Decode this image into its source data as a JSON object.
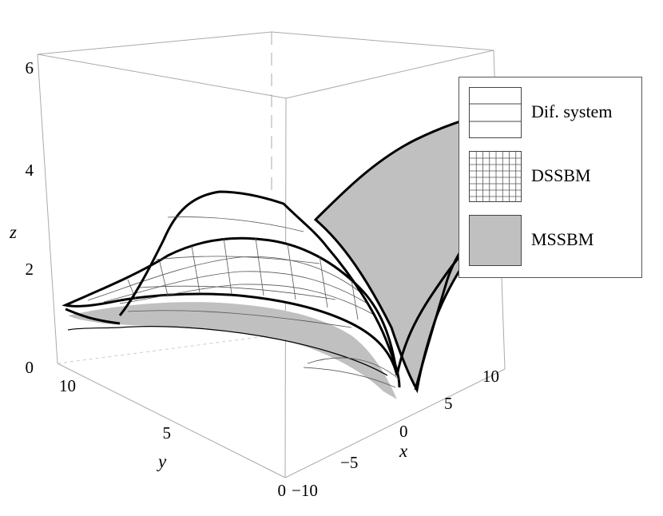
{
  "chart_data": {
    "type": "surface3d",
    "title": "",
    "xlabel": "x",
    "ylabel": "y",
    "zlabel": "z",
    "xlim": [
      -10,
      10
    ],
    "ylim": [
      0,
      10
    ],
    "zlim": [
      0,
      6
    ],
    "x_ticks": [
      "−10",
      "−5",
      "0",
      "5",
      "10"
    ],
    "y_ticks": [
      "0",
      "5",
      "10"
    ],
    "z_ticks": [
      "0",
      "2",
      "4",
      "6"
    ],
    "series": [
      {
        "name": "Dif. system",
        "fill": "#ffffff",
        "pattern": "horizontal-lines"
      },
      {
        "name": "DSSBM",
        "fill": "#ffffff",
        "pattern": "grid"
      },
      {
        "name": "MSSBM",
        "fill": "#c0c0c0",
        "pattern": "solid"
      }
    ],
    "legend_position": "right"
  }
}
